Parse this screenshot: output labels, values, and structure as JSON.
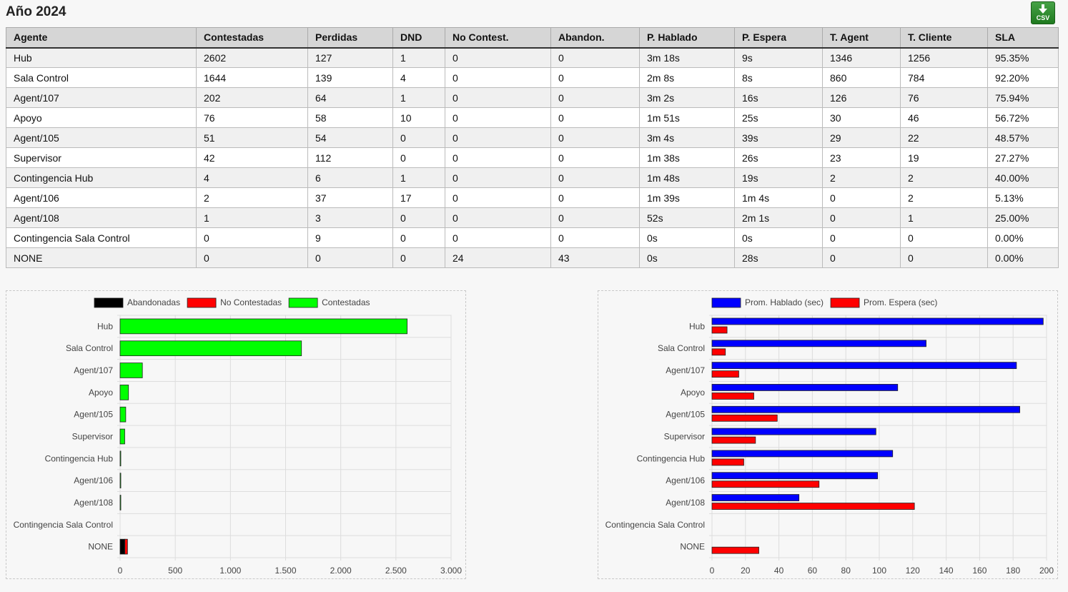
{
  "page": {
    "title": "Año 2024"
  },
  "export": {
    "csv_label": "CSV",
    "icon": "download-arrow-icon"
  },
  "table": {
    "headers": [
      "Agente",
      "Contestadas",
      "Perdidas",
      "DND",
      "No Contest.",
      "Abandon.",
      "P. Hablado",
      "P. Espera",
      "T. Agent",
      "T. Cliente",
      "SLA"
    ],
    "rows": [
      [
        "Hub",
        "2602",
        "127",
        "1",
        "0",
        "0",
        "3m 18s",
        "9s",
        "1346",
        "1256",
        "95.35%"
      ],
      [
        "Sala Control",
        "1644",
        "139",
        "4",
        "0",
        "0",
        "2m 8s",
        "8s",
        "860",
        "784",
        "92.20%"
      ],
      [
        "Agent/107",
        "202",
        "64",
        "1",
        "0",
        "0",
        "3m 2s",
        "16s",
        "126",
        "76",
        "75.94%"
      ],
      [
        "Apoyo",
        "76",
        "58",
        "10",
        "0",
        "0",
        "1m 51s",
        "25s",
        "30",
        "46",
        "56.72%"
      ],
      [
        "Agent/105",
        "51",
        "54",
        "0",
        "0",
        "0",
        "3m 4s",
        "39s",
        "29",
        "22",
        "48.57%"
      ],
      [
        "Supervisor",
        "42",
        "112",
        "0",
        "0",
        "0",
        "1m 38s",
        "26s",
        "23",
        "19",
        "27.27%"
      ],
      [
        "Contingencia Hub",
        "4",
        "6",
        "1",
        "0",
        "0",
        "1m 48s",
        "19s",
        "2",
        "2",
        "40.00%"
      ],
      [
        "Agent/106",
        "2",
        "37",
        "17",
        "0",
        "0",
        "1m 39s",
        "1m 4s",
        "0",
        "2",
        "5.13%"
      ],
      [
        "Agent/108",
        "1",
        "3",
        "0",
        "0",
        "0",
        "52s",
        "2m 1s",
        "0",
        "1",
        "25.00%"
      ],
      [
        "Contingencia Sala Control",
        "0",
        "9",
        "0",
        "0",
        "0",
        "0s",
        "0s",
        "0",
        "0",
        "0.00%"
      ],
      [
        "NONE",
        "0",
        "0",
        "0",
        "24",
        "43",
        "0s",
        "28s",
        "0",
        "0",
        "0.00%"
      ]
    ]
  },
  "chart_data": [
    {
      "type": "bar",
      "orientation": "horizontal",
      "stacked": true,
      "categories": [
        "Hub",
        "Sala Control",
        "Agent/107",
        "Apoyo",
        "Agent/105",
        "Supervisor",
        "Contingencia Hub",
        "Agent/106",
        "Agent/108",
        "Contingencia Sala Control",
        "NONE"
      ],
      "series": [
        {
          "name": "Abandonadas",
          "color": "#000000",
          "values": [
            0,
            0,
            0,
            0,
            0,
            0,
            0,
            0,
            0,
            0,
            43
          ]
        },
        {
          "name": "No Contestadas",
          "color": "#ff0000",
          "values": [
            0,
            0,
            0,
            0,
            0,
            0,
            0,
            0,
            0,
            0,
            24
          ]
        },
        {
          "name": "Contestadas",
          "color": "#00ff00",
          "values": [
            2602,
            1644,
            202,
            76,
            51,
            42,
            4,
            2,
            1,
            0,
            0
          ]
        }
      ],
      "xlim": [
        0,
        3000
      ],
      "xticks": [
        0,
        500,
        1000,
        1500,
        2000,
        2500,
        3000
      ],
      "xtick_labels": [
        "0",
        "500",
        "1.000",
        "1.500",
        "2.000",
        "2.500",
        "3.000"
      ],
      "grid": true,
      "legend_position": "top"
    },
    {
      "type": "bar",
      "orientation": "horizontal",
      "stacked": false,
      "categories": [
        "Hub",
        "Sala Control",
        "Agent/107",
        "Apoyo",
        "Agent/105",
        "Supervisor",
        "Contingencia Hub",
        "Agent/106",
        "Agent/108",
        "Contingencia Sala Control",
        "NONE"
      ],
      "series": [
        {
          "name": "Prom. Hablado (sec)",
          "color": "#0000ff",
          "values": [
            198,
            128,
            182,
            111,
            184,
            98,
            108,
            99,
            52,
            0,
            0
          ]
        },
        {
          "name": "Prom. Espera (sec)",
          "color": "#ff0000",
          "values": [
            9,
            8,
            16,
            25,
            39,
            26,
            19,
            64,
            121,
            0,
            28
          ]
        }
      ],
      "xlim": [
        0,
        200
      ],
      "xticks": [
        0,
        20,
        40,
        60,
        80,
        100,
        120,
        140,
        160,
        180,
        200
      ],
      "xtick_labels": [
        "0",
        "20",
        "40",
        "60",
        "80",
        "100",
        "120",
        "140",
        "160",
        "180",
        "200"
      ],
      "grid": true,
      "legend_position": "top"
    }
  ]
}
